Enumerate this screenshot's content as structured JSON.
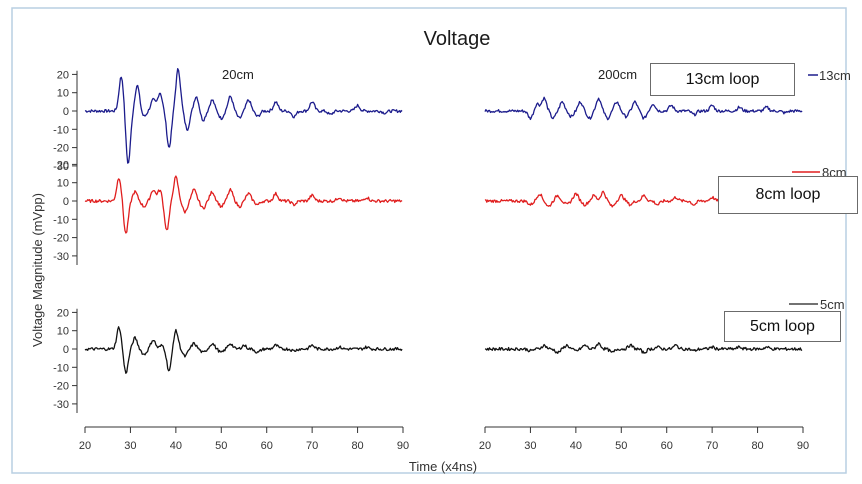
{
  "chart_data": {
    "type": "line",
    "title": "Voltage",
    "xlabel": "Time (x4ns)",
    "ylabel": "Voltage Magnitude (mVpp)",
    "xlim": [
      20,
      90
    ],
    "ylim": [
      -35,
      22
    ],
    "x_ticks": [
      "20",
      "30",
      "40",
      "50",
      "60",
      "70",
      "80",
      "90"
    ],
    "y_ticks": [
      "20",
      "10",
      "0",
      "-10",
      "-20",
      "-30"
    ],
    "grid": false,
    "columns": [
      "20cm",
      "200cm"
    ],
    "legend": [
      "13cm",
      "8cm",
      "5cm"
    ],
    "series": [
      {
        "name": "13cm",
        "color": "#1c1c8c",
        "panels": [
          {
            "column": "20cm",
            "peaks": [
              [
                28,
                19
              ],
              [
                29.5,
                -29
              ],
              [
                31.5,
                14
              ],
              [
                33,
                -3
              ],
              [
                35,
                6
              ],
              [
                36.5,
                10
              ],
              [
                38.5,
                -20
              ],
              [
                40.5,
                23
              ],
              [
                42.5,
                -10
              ],
              [
                44.5,
                8
              ],
              [
                46,
                -5
              ],
              [
                48,
                6
              ],
              [
                50,
                -4
              ],
              [
                52,
                8
              ],
              [
                54,
                -4
              ],
              [
                56,
                6
              ],
              [
                58,
                -3
              ],
              [
                62,
                5
              ],
              [
                66,
                -3
              ],
              [
                70,
                5
              ],
              [
                74,
                -2
              ],
              [
                80,
                3
              ],
              [
                86,
                -1
              ]
            ]
          },
          {
            "column": "200cm",
            "peaks": [
              [
                30,
                -4
              ],
              [
                31.5,
                4
              ],
              [
                33,
                7
              ],
              [
                35,
                -4
              ],
              [
                37,
                5
              ],
              [
                39,
                -3
              ],
              [
                41,
                5
              ],
              [
                43,
                -4
              ],
              [
                45,
                7
              ],
              [
                47,
                -4
              ],
              [
                49,
                5
              ],
              [
                51,
                -3
              ],
              [
                53,
                5
              ],
              [
                55,
                -4
              ],
              [
                57,
                4
              ],
              [
                61,
                3
              ],
              [
                66,
                -2
              ],
              [
                70,
                3
              ],
              [
                76,
                2
              ],
              [
                82,
                2
              ],
              [
                86,
                -1
              ]
            ]
          }
        ]
      },
      {
        "name": "8cm",
        "color": "#e01e1e",
        "panels": [
          {
            "column": "20cm",
            "peaks": [
              [
                27.5,
                13
              ],
              [
                29,
                -18
              ],
              [
                31,
                5
              ],
              [
                33,
                -3
              ],
              [
                35,
                6
              ],
              [
                36.5,
                6
              ],
              [
                38,
                -16
              ],
              [
                40,
                13
              ],
              [
                42,
                -6
              ],
              [
                44,
                6
              ],
              [
                46,
                -4
              ],
              [
                48,
                5
              ],
              [
                50,
                -3
              ],
              [
                52,
                6
              ],
              [
                54,
                -3
              ],
              [
                56,
                4
              ],
              [
                58,
                -2
              ],
              [
                62,
                4
              ],
              [
                66,
                -2
              ],
              [
                70,
                3
              ],
              [
                76,
                2
              ],
              [
                82,
                2
              ]
            ]
          },
          {
            "column": "200cm",
            "peaks": [
              [
                30,
                -2
              ],
              [
                32,
                4
              ],
              [
                34,
                -3
              ],
              [
                36,
                3
              ],
              [
                38,
                -2
              ],
              [
                40,
                4
              ],
              [
                42,
                -2
              ],
              [
                44,
                3
              ],
              [
                46,
                5
              ],
              [
                48,
                -3
              ],
              [
                50,
                3
              ],
              [
                52,
                -2
              ],
              [
                55,
                3
              ],
              [
                58,
                -2
              ],
              [
                62,
                2
              ],
              [
                66,
                -2
              ],
              [
                70,
                2
              ],
              [
                76,
                2
              ],
              [
                82,
                1
              ]
            ]
          }
        ]
      },
      {
        "name": "5cm",
        "color": "#111111",
        "panels": [
          {
            "column": "20cm",
            "peaks": [
              [
                27.5,
                12
              ],
              [
                29,
                -13
              ],
              [
                31,
                6
              ],
              [
                33,
                -3
              ],
              [
                35,
                5
              ],
              [
                37,
                2
              ],
              [
                38.5,
                -12
              ],
              [
                40,
                10
              ],
              [
                42,
                -4
              ],
              [
                44,
                3
              ],
              [
                46,
                -2
              ],
              [
                48,
                3
              ],
              [
                50,
                -2
              ],
              [
                52,
                3
              ],
              [
                55,
                2
              ],
              [
                58,
                -2
              ],
              [
                62,
                2
              ],
              [
                66,
                -1
              ],
              [
                70,
                2
              ],
              [
                76,
                1
              ],
              [
                82,
                1
              ]
            ]
          },
          {
            "column": "200cm",
            "peaks": [
              [
                30,
                -1
              ],
              [
                33,
                2
              ],
              [
                36,
                -2
              ],
              [
                38,
                2
              ],
              [
                40,
                -1
              ],
              [
                42,
                2
              ],
              [
                45,
                3
              ],
              [
                48,
                -2
              ],
              [
                52,
                2
              ],
              [
                55,
                -2
              ],
              [
                58,
                1
              ],
              [
                62,
                2
              ],
              [
                66,
                -1
              ],
              [
                70,
                1
              ],
              [
                76,
                1
              ],
              [
                82,
                1
              ]
            ]
          }
        ]
      }
    ]
  },
  "annotations": [
    "13cm loop",
    "8cm loop",
    "5cm loop"
  ]
}
